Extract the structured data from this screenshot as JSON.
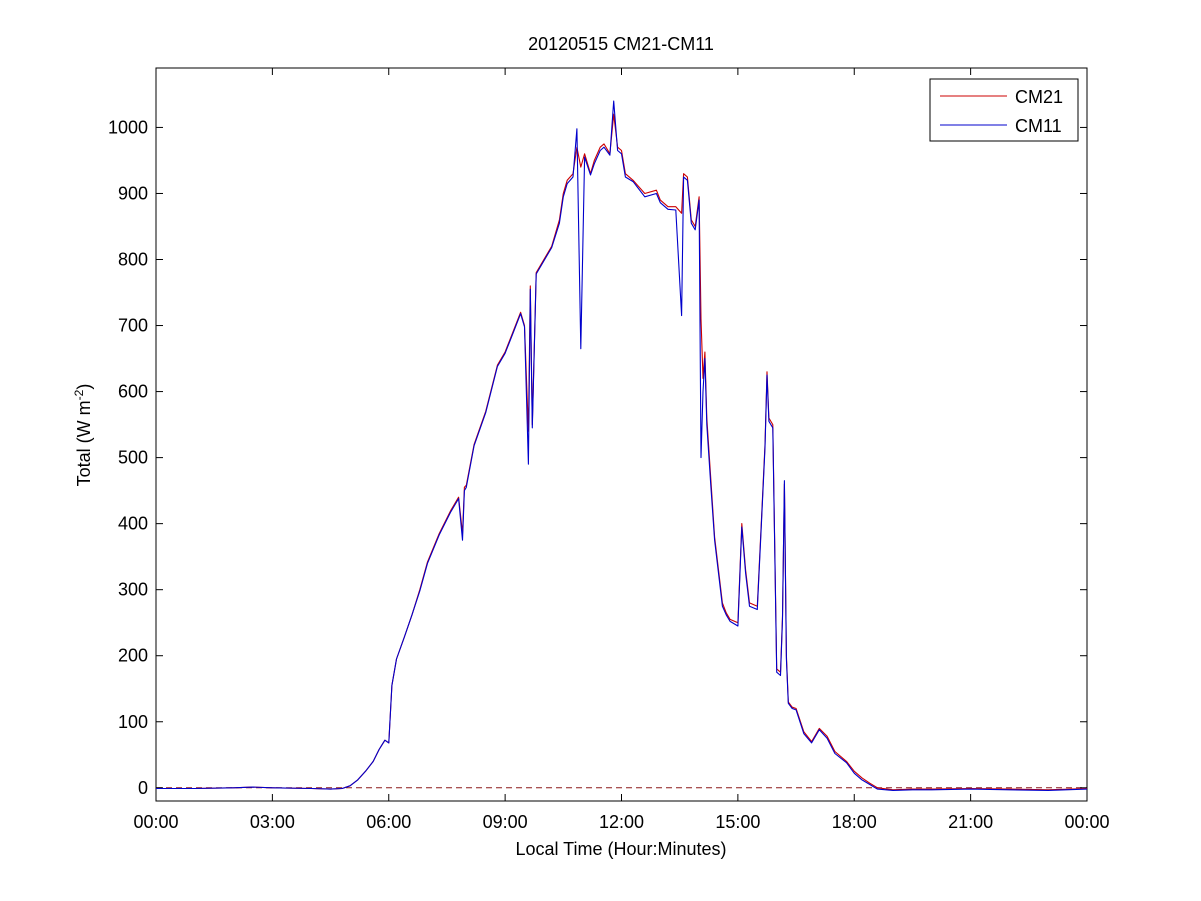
{
  "chart_data": {
    "type": "line",
    "title": "20120515 CM21-CM11",
    "xlabel": "Local Time (Hour:Minutes)",
    "ylabel": "Total (W m",
    "ylabel_sup": "-2",
    "ylabel_close": ")",
    "xlim": [
      0,
      24
    ],
    "ylim": [
      -20,
      1090
    ],
    "x_unit": "hours",
    "xticks": [
      0,
      3,
      6,
      9,
      12,
      15,
      18,
      21,
      24
    ],
    "xtick_labels": [
      "00:00",
      "03:00",
      "06:00",
      "09:00",
      "12:00",
      "15:00",
      "18:00",
      "21:00",
      "00:00"
    ],
    "yticks": [
      0,
      100,
      200,
      300,
      400,
      500,
      600,
      700,
      800,
      900,
      1000
    ],
    "ytick_labels": [
      "0",
      "100",
      "200",
      "300",
      "400",
      "500",
      "600",
      "700",
      "800",
      "900",
      "1000"
    ],
    "grid": false,
    "legend_position": "top-right",
    "reference_line": {
      "y": 0,
      "style": "dashed",
      "color": "#8b1a1a"
    },
    "series": [
      {
        "name": "CM21",
        "color": "#cc0000",
        "x": [
          0,
          1,
          2,
          2.5,
          3,
          4,
          4.5,
          4.8,
          5.0,
          5.2,
          5.4,
          5.6,
          5.75,
          5.9,
          6.0,
          6.08,
          6.2,
          6.4,
          6.6,
          6.8,
          7.0,
          7.3,
          7.6,
          7.8,
          7.9,
          7.95,
          8.0,
          8.2,
          8.5,
          8.8,
          9.0,
          9.2,
          9.4,
          9.5,
          9.6,
          9.65,
          9.7,
          9.8,
          10.0,
          10.2,
          10.4,
          10.5,
          10.6,
          10.75,
          10.85,
          10.95,
          11.05,
          11.2,
          11.3,
          11.45,
          11.55,
          11.7,
          11.8,
          11.9,
          12.0,
          12.1,
          12.3,
          12.6,
          12.9,
          13.0,
          13.2,
          13.4,
          13.55,
          13.6,
          13.7,
          13.8,
          13.9,
          14.0,
          14.05,
          14.1,
          14.15,
          14.2,
          14.3,
          14.4,
          14.5,
          14.6,
          14.7,
          14.8,
          15.0,
          15.1,
          15.2,
          15.3,
          15.5,
          15.6,
          15.7,
          15.75,
          15.8,
          15.9,
          16.0,
          16.1,
          16.15,
          16.2,
          16.25,
          16.3,
          16.4,
          16.5,
          16.7,
          16.9,
          17.1,
          17.3,
          17.5,
          17.8,
          18.0,
          18.2,
          18.4,
          18.6,
          19.0,
          19.5,
          20.0,
          21.0,
          22.0,
          23.0,
          24.0
        ],
        "y": [
          -1,
          -1,
          0,
          1,
          0,
          -1,
          -2,
          -1,
          3,
          12,
          25,
          40,
          58,
          72,
          68,
          155,
          195,
          228,
          262,
          300,
          342,
          385,
          420,
          440,
          385,
          455,
          458,
          520,
          570,
          640,
          660,
          690,
          720,
          700,
          540,
          760,
          550,
          780,
          800,
          820,
          860,
          900,
          920,
          930,
          970,
          940,
          960,
          930,
          950,
          970,
          975,
          960,
          1020,
          970,
          965,
          930,
          920,
          900,
          905,
          890,
          880,
          880,
          870,
          930,
          925,
          860,
          850,
          895,
          710,
          620,
          660,
          560,
          470,
          380,
          330,
          280,
          265,
          255,
          250,
          400,
          330,
          280,
          275,
          395,
          520,
          630,
          560,
          550,
          180,
          175,
          260,
          460,
          200,
          130,
          122,
          120,
          85,
          70,
          90,
          78,
          55,
          40,
          25,
          15,
          7,
          0,
          -3,
          -2,
          -2,
          -1,
          -2,
          -3,
          -1
        ]
      },
      {
        "name": "CM11",
        "color": "#0000cc",
        "x": [
          0,
          1,
          2,
          2.5,
          3,
          4,
          4.5,
          4.8,
          5.0,
          5.2,
          5.4,
          5.6,
          5.75,
          5.9,
          6.0,
          6.08,
          6.2,
          6.4,
          6.6,
          6.8,
          7.0,
          7.3,
          7.6,
          7.8,
          7.9,
          7.95,
          8.0,
          8.2,
          8.5,
          8.8,
          9.0,
          9.2,
          9.4,
          9.5,
          9.6,
          9.65,
          9.7,
          9.8,
          10.0,
          10.2,
          10.4,
          10.5,
          10.6,
          10.75,
          10.85,
          10.95,
          11.05,
          11.2,
          11.3,
          11.45,
          11.55,
          11.7,
          11.8,
          11.9,
          12.0,
          12.1,
          12.3,
          12.6,
          12.9,
          13.0,
          13.2,
          13.4,
          13.55,
          13.6,
          13.7,
          13.8,
          13.9,
          14.0,
          14.05,
          14.1,
          14.15,
          14.2,
          14.3,
          14.4,
          14.5,
          14.6,
          14.7,
          14.8,
          15.0,
          15.1,
          15.2,
          15.3,
          15.5,
          15.6,
          15.7,
          15.75,
          15.8,
          15.9,
          16.0,
          16.1,
          16.15,
          16.2,
          16.25,
          16.3,
          16.4,
          16.5,
          16.7,
          16.9,
          17.1,
          17.3,
          17.5,
          17.8,
          18.0,
          18.2,
          18.4,
          18.6,
          19.0,
          19.5,
          20.0,
          21.0,
          22.0,
          23.0,
          24.0
        ],
        "y": [
          -1,
          -1,
          0,
          1,
          0,
          -1,
          -2,
          -1,
          3,
          12,
          25,
          40,
          58,
          72,
          68,
          155,
          195,
          228,
          262,
          298,
          340,
          383,
          418,
          438,
          375,
          450,
          455,
          518,
          568,
          638,
          658,
          688,
          718,
          698,
          490,
          755,
          545,
          778,
          798,
          818,
          855,
          895,
          915,
          925,
          998,
          665,
          955,
          928,
          945,
          965,
          970,
          958,
          1040,
          965,
          960,
          925,
          918,
          895,
          900,
          886,
          876,
          875,
          715,
          925,
          920,
          855,
          845,
          890,
          500,
          600,
          650,
          550,
          460,
          375,
          325,
          275,
          262,
          252,
          245,
          395,
          325,
          275,
          270,
          390,
          515,
          625,
          555,
          545,
          175,
          170,
          255,
          465,
          195,
          128,
          120,
          118,
          82,
          68,
          88,
          75,
          52,
          38,
          22,
          12,
          5,
          -2,
          -4,
          -3,
          -3,
          -2,
          -3,
          -4,
          -2
        ]
      }
    ]
  }
}
